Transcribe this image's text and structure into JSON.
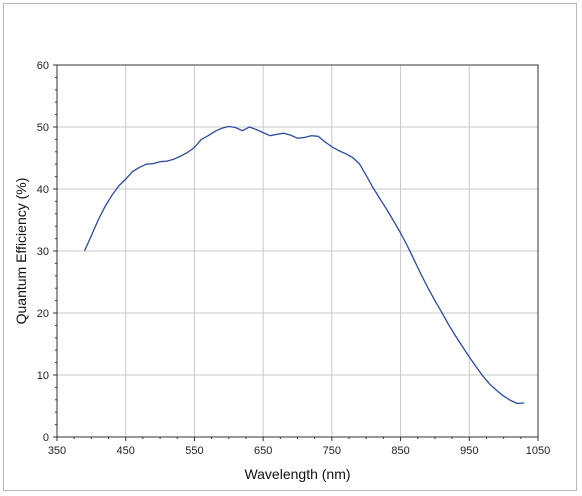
{
  "chart_data": {
    "type": "line",
    "title": "",
    "xlabel": "Wavelength (nm)",
    "ylabel": "Quantum Efficiency (%)",
    "xlim": [
      350,
      1050
    ],
    "ylim": [
      0,
      60
    ],
    "xticks": [
      350,
      450,
      550,
      650,
      750,
      850,
      950,
      1050
    ],
    "yticks": [
      0,
      10,
      20,
      30,
      40,
      50,
      60
    ],
    "grid": true,
    "legend": "none",
    "series": [
      {
        "color": "#2b4a9c",
        "x": [
          390,
          400,
          410,
          420,
          430,
          440,
          450,
          460,
          470,
          480,
          490,
          500,
          510,
          520,
          530,
          540,
          550,
          560,
          570,
          580,
          590,
          600,
          610,
          620,
          630,
          640,
          650,
          660,
          670,
          680,
          690,
          700,
          710,
          720,
          730,
          740,
          750,
          760,
          770,
          780,
          790,
          800,
          810,
          820,
          830,
          840,
          850,
          860,
          870,
          880,
          890,
          900,
          910,
          920,
          930,
          940,
          950,
          960,
          970,
          980,
          990,
          1000,
          1010,
          1020,
          1030
        ],
        "y": [
          30,
          32.5,
          35,
          37.2,
          39,
          40.5,
          41.6,
          42.8,
          43.5,
          44,
          44.1,
          44.4,
          44.5,
          44.8,
          45.3,
          45.9,
          46.7,
          48,
          48.6,
          49.3,
          49.8,
          50.1,
          49.9,
          49.4,
          50,
          49.6,
          49.1,
          48.6,
          48.8,
          49,
          48.7,
          48.2,
          48.3,
          48.6,
          48.5,
          47.6,
          46.8,
          46.2,
          45.7,
          45.1,
          44.1,
          42.2,
          40.2,
          38.4,
          36.7,
          34.8,
          32.9,
          30.8,
          28.5,
          26.2,
          24,
          22,
          20.1,
          18.1,
          16.3,
          14.6,
          12.9,
          11.3,
          9.8,
          8.5,
          7.5,
          6.6,
          5.9,
          5.4,
          5.5
        ]
      }
    ]
  }
}
